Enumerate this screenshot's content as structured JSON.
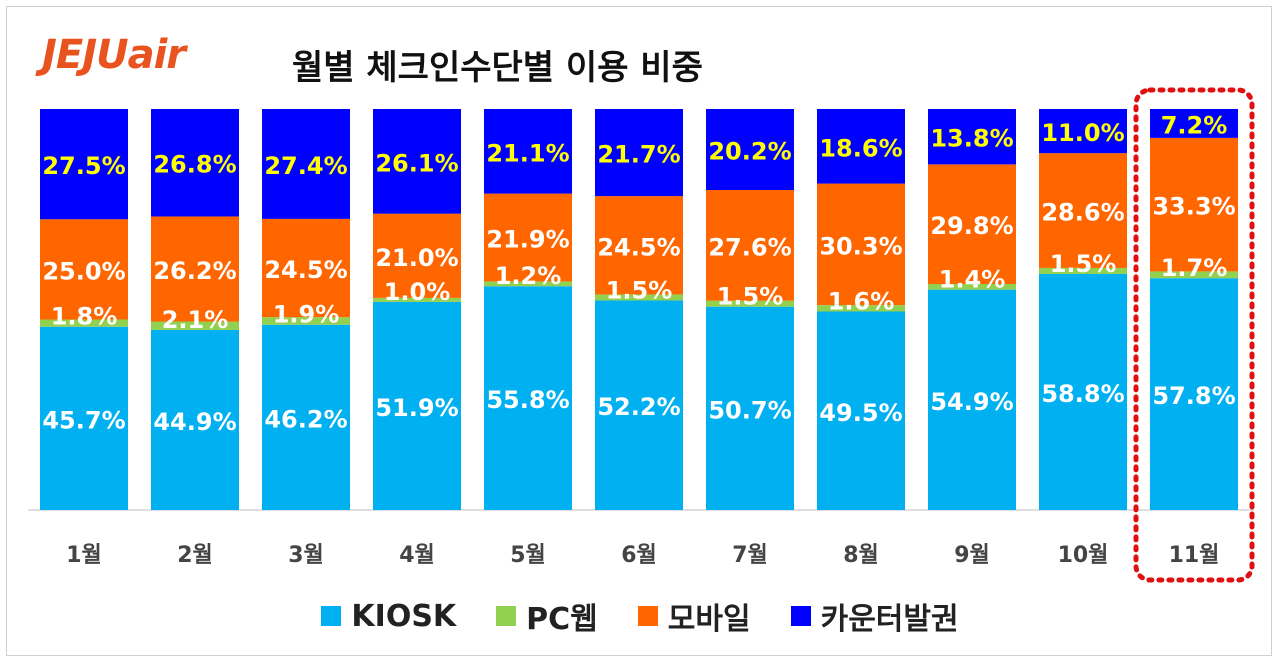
{
  "header": {
    "logo_text": "JEJUair",
    "title": "월별 체크인수단별 이용 비중"
  },
  "colors": {
    "kiosk": "#00b0f0",
    "pcweb": "#92d050",
    "mobile": "#ff6600",
    "counter": "#0000ff",
    "highlight": "#e01010",
    "label_light": "#ffffff",
    "label_yellow": "#ffff00"
  },
  "chart_data": {
    "type": "bar",
    "stacked": true,
    "categories": [
      "1월",
      "2월",
      "3월",
      "4월",
      "5월",
      "6월",
      "7월",
      "8월",
      "9월",
      "10월",
      "11월"
    ],
    "series": [
      {
        "name": "KIOSK",
        "values": [
          45.7,
          44.9,
          46.2,
          51.9,
          55.8,
          52.2,
          50.7,
          49.5,
          54.9,
          58.8,
          57.8
        ]
      },
      {
        "name": "PC웹",
        "values": [
          1.8,
          2.1,
          1.9,
          1.0,
          1.2,
          1.5,
          1.5,
          1.6,
          1.4,
          1.5,
          1.7
        ]
      },
      {
        "name": "모바일",
        "values": [
          25.0,
          26.2,
          24.5,
          21.0,
          21.9,
          24.5,
          27.6,
          30.3,
          29.8,
          28.6,
          33.3
        ]
      },
      {
        "name": "카운터발권",
        "values": [
          27.5,
          26.8,
          27.4,
          26.1,
          21.1,
          21.7,
          20.2,
          18.6,
          13.8,
          11.0,
          7.2
        ]
      }
    ],
    "highlighted_category": "11월",
    "legend_position": "bottom",
    "grid": false,
    "title": "월별 체크인수단별 이용 비중"
  }
}
